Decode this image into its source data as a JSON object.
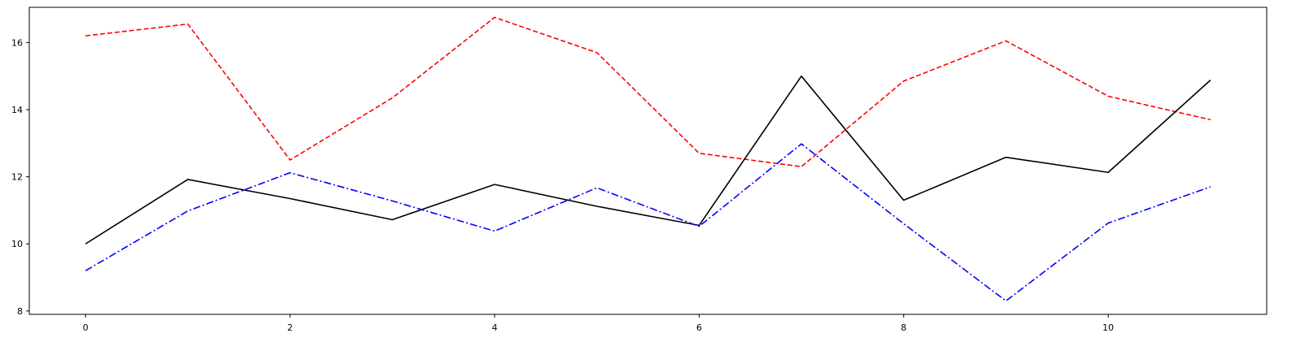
{
  "chart_data": {
    "type": "line",
    "title": "",
    "xlabel": "",
    "ylabel": "",
    "x": [
      0,
      1,
      2,
      3,
      4,
      5,
      6,
      7,
      8,
      9,
      10,
      11
    ],
    "xlim": [
      -0.55,
      11.55
    ],
    "ylim": [
      7.9,
      17.05
    ],
    "xticks": [
      0,
      2,
      4,
      6,
      8,
      10
    ],
    "yticks": [
      8,
      10,
      12,
      14,
      16
    ],
    "xtick_labels": [
      "0",
      "2",
      "4",
      "6",
      "8",
      "10"
    ],
    "ytick_labels": [
      "8",
      "10",
      "12",
      "14",
      "16"
    ],
    "grid": false,
    "legend": "none",
    "series": [
      {
        "color": "#ff0000",
        "linestyle": "dashed",
        "values": [
          16.2,
          16.55,
          12.5,
          14.35,
          16.75,
          15.7,
          12.7,
          12.3,
          14.85,
          16.05,
          14.4,
          13.7
        ]
      },
      {
        "color": "#000000",
        "linestyle": "solid",
        "values": [
          10.0,
          11.92,
          11.35,
          10.72,
          11.77,
          11.12,
          10.55,
          15.0,
          11.3,
          12.58,
          12.13,
          14.88
        ]
      },
      {
        "color": "#0000ff",
        "linestyle": "dashdot",
        "values": [
          9.2,
          10.98,
          12.12,
          11.28,
          10.38,
          11.67,
          10.52,
          12.98,
          10.6,
          8.3,
          10.62,
          11.7
        ]
      }
    ]
  }
}
